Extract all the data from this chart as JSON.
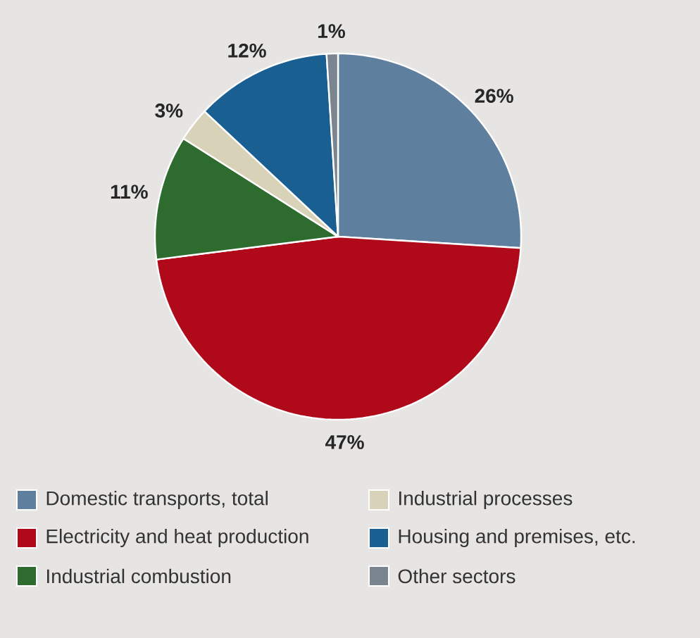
{
  "chart_data": {
    "type": "pie",
    "categories": [
      "Domestic transports, total",
      "Electricity and heat production",
      "Industrial combustion",
      "Industrial processes",
      "Housing and premises, etc.",
      "Other sectors"
    ],
    "values": [
      26,
      47,
      11,
      3,
      12,
      1
    ],
    "value_labels": [
      "26%",
      "47%",
      "11%",
      "3%",
      "12%",
      "1%"
    ],
    "colors": [
      "#5f7f9e",
      "#b00a1a",
      "#2e6b2e",
      "#d8d3b8",
      "#1a5f92",
      "#7a8590"
    ],
    "legend": "bottom"
  }
}
